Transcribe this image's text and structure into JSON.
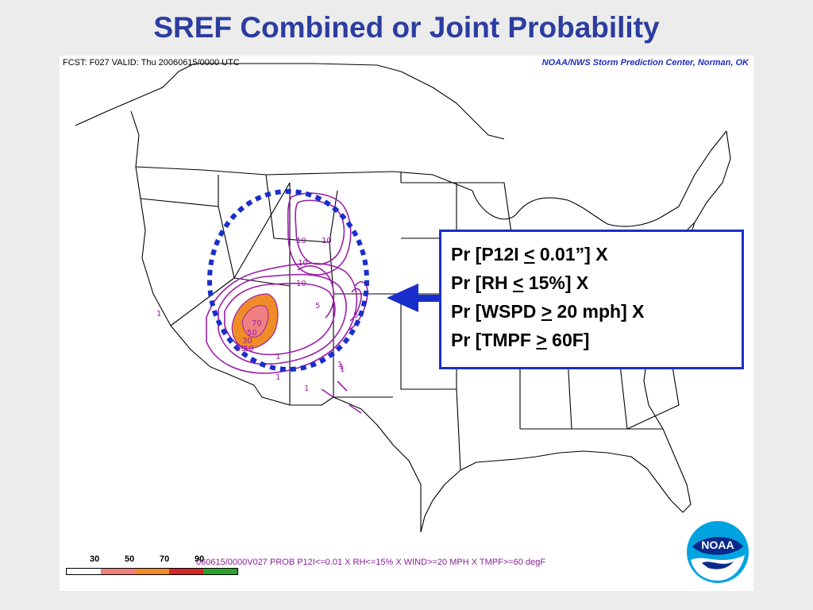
{
  "slide": {
    "title": "SREF Combined or Joint Probability"
  },
  "map": {
    "forecast_header": "FCST: F027  VALID: Thu  20060615/0000 UTC",
    "credit": "NOAA/NWS Storm Prediction Center, Norman, OK",
    "product_caption": "060615/0000V027 PROB P12I<=0.01 X RH<=15% X WIND>=20 MPH X TMPF>=60 degF",
    "contour_labels": [
      "10",
      "10",
      "10",
      "10",
      "5",
      "5",
      "1",
      "70",
      "50",
      "30",
      "50",
      "10",
      "1",
      "1",
      "1",
      "1",
      "1",
      "1"
    ],
    "legend": [
      {
        "label": "30",
        "color": "#ffffff"
      },
      {
        "label": "50",
        "color": "#f08080"
      },
      {
        "label": "70",
        "color": "#f08c28"
      },
      {
        "label": "90",
        "color": "#d22828"
      },
      {
        "label": "",
        "color": "#2ca02c"
      }
    ],
    "colors": {
      "contour": "#9b1fa8",
      "highlight_ring": "#1a2ecc",
      "boundaries": "#000000"
    }
  },
  "callout": {
    "lines": [
      {
        "prefix": "Pr [P12I ",
        "op": "<",
        "suffix": " 0.01”] X"
      },
      {
        "prefix": "Pr [RH ",
        "op": "<",
        "suffix": " 15%] X"
      },
      {
        "prefix": "Pr [WSPD ",
        "op": ">",
        "suffix": " 20 mph] X"
      },
      {
        "prefix": "Pr [TMPF ",
        "op": ">",
        "suffix": " 60F]"
      }
    ]
  },
  "logo": {
    "text": "NOAA"
  }
}
